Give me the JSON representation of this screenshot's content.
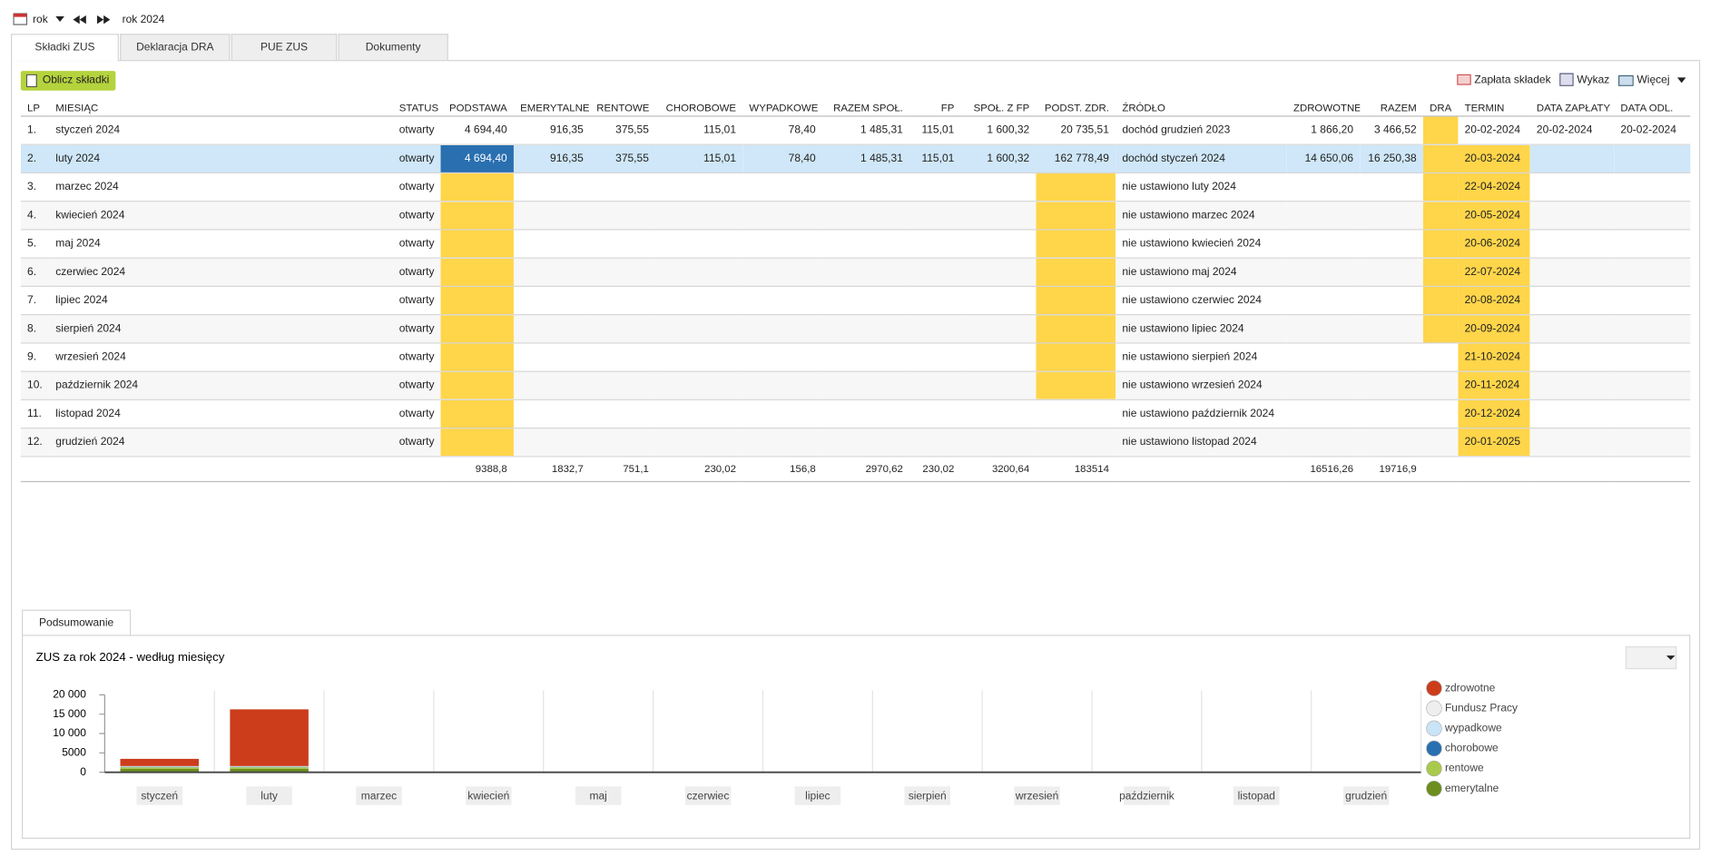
{
  "toolbar": {
    "period": "rok",
    "period_label": "rok 2024"
  },
  "tabs": [
    "Składki ZUS",
    "Deklaracja DRA",
    "PUE ZUS",
    "Dokumenty"
  ],
  "actions": {
    "calculate": "Oblicz składki",
    "payment": "Zapłata składek",
    "list": "Wykaz",
    "more": "Więcej"
  },
  "table": {
    "columns": [
      "LP",
      "MIESIĄC",
      "STATUS",
      "PODSTAWA",
      "EMERYTALNE",
      "RENTOWE",
      "CHOROBOWE",
      "WYPADKOWE",
      "RAZEM SPOŁ.",
      "FP",
      "SPOŁ. Z FP",
      "PODST. ZDR.",
      "ŹRÓDŁO",
      "ZDROWOTNE",
      "RAZEM",
      "DRA",
      "TERMIN",
      "DATA ZAPŁATY",
      "DATA ODL."
    ],
    "rows": [
      [
        "1.",
        "styczeń 2024",
        "otwarty",
        "4 694,40",
        "916,35",
        "375,55",
        "115,01",
        "78,40",
        "1 485,31",
        "115,01",
        "1 600,32",
        "20 735,51",
        "dochód grudzień 2023",
        "1 866,20",
        "3 466,52",
        null,
        "20-02-2024",
        "20-02-2024",
        "20-02-2024"
      ],
      [
        "2.",
        "luty 2024",
        "otwarty",
        "4 694,40",
        "916,35",
        "375,55",
        "115,01",
        "78,40",
        "1 485,31",
        "115,01",
        "1 600,32",
        "162 778,49",
        "dochód styczeń 2024",
        "14 650,06",
        "16 250,38",
        null,
        "20-03-2024",
        null,
        null
      ],
      [
        "3.",
        "marzec 2024",
        "otwarty",
        null,
        null,
        null,
        null,
        null,
        null,
        null,
        null,
        null,
        "nie ustawiono luty 2024",
        null,
        null,
        null,
        "22-04-2024",
        null,
        null
      ],
      [
        "4.",
        "kwiecień 2024",
        "otwarty",
        null,
        null,
        null,
        null,
        null,
        null,
        null,
        null,
        null,
        "nie ustawiono marzec 2024",
        null,
        null,
        null,
        "20-05-2024",
        null,
        null
      ],
      [
        "5.",
        "maj 2024",
        "otwarty",
        null,
        null,
        null,
        null,
        null,
        null,
        null,
        null,
        null,
        "nie ustawiono kwiecień 2024",
        null,
        null,
        null,
        "20-06-2024",
        null,
        null
      ],
      [
        "6.",
        "czerwiec 2024",
        "otwarty",
        null,
        null,
        null,
        null,
        null,
        null,
        null,
        null,
        null,
        "nie ustawiono maj 2024",
        null,
        null,
        null,
        "22-07-2024",
        null,
        null
      ],
      [
        "7.",
        "lipiec 2024",
        "otwarty",
        null,
        null,
        null,
        null,
        null,
        null,
        null,
        null,
        null,
        "nie ustawiono czerwiec 2024",
        null,
        null,
        null,
        "20-08-2024",
        null,
        null
      ],
      [
        "8.",
        "sierpień 2024",
        "otwarty",
        null,
        null,
        null,
        null,
        null,
        null,
        null,
        null,
        null,
        "nie ustawiono lipiec 2024",
        null,
        null,
        null,
        "20-09-2024",
        null,
        null
      ],
      [
        "9.",
        "wrzesień 2024",
        "otwarty",
        null,
        null,
        null,
        null,
        null,
        null,
        null,
        null,
        null,
        "nie ustawiono sierpień 2024",
        null,
        null,
        null,
        "21-10-2024",
        null,
        null
      ],
      [
        "10.",
        "październik 2024",
        "otwarty",
        null,
        null,
        null,
        null,
        null,
        null,
        null,
        null,
        null,
        "nie ustawiono wrzesień 2024",
        null,
        null,
        null,
        "20-11-2024",
        null,
        null
      ],
      [
        "11.",
        "listopad 2024",
        "otwarty",
        null,
        null,
        null,
        null,
        null,
        null,
        null,
        null,
        null,
        "nie ustawiono październik 2024",
        null,
        null,
        null,
        "20-12-2024",
        null,
        null
      ],
      [
        "12.",
        "grudzień 2024",
        "otwarty",
        null,
        null,
        null,
        null,
        null,
        null,
        null,
        null,
        null,
        "nie ustawiono listopad 2024",
        null,
        null,
        null,
        "20-01-2025",
        null,
        null
      ]
    ],
    "totals": [
      null,
      null,
      null,
      "9388,8",
      "1832,7",
      "751,1",
      "230,02",
      "156,8",
      "2970,62",
      "230,02",
      "3200,64",
      "183514",
      null,
      "16516,26",
      "19716,9",
      null,
      null,
      null,
      null
    ]
  },
  "summary_tab": "Podsumowanie",
  "chart_data": {
    "type": "stacked-bar",
    "title": "ZUS za rok 2024 - według miesięcy",
    "categories": [
      "styczeń",
      "luty",
      "marzec",
      "kwiecień",
      "maj",
      "czerwiec",
      "lipiec",
      "sierpień",
      "wrzesień",
      "październik",
      "listopad",
      "grudzień"
    ],
    "series": [
      {
        "name": "emerytalne",
        "color": "#6b8e1e",
        "values": [
          916.35,
          916.35,
          0,
          0,
          0,
          0,
          0,
          0,
          0,
          0,
          0,
          0
        ]
      },
      {
        "name": "rentowe",
        "color": "#a9c94a",
        "values": [
          375.55,
          375.55,
          0,
          0,
          0,
          0,
          0,
          0,
          0,
          0,
          0,
          0
        ]
      },
      {
        "name": "chorobowe",
        "color": "#2a6fb0",
        "values": [
          115.01,
          115.01,
          0,
          0,
          0,
          0,
          0,
          0,
          0,
          0,
          0,
          0
        ]
      },
      {
        "name": "wypadkowe",
        "color": "#c9e3f7",
        "values": [
          78.4,
          78.4,
          0,
          0,
          0,
          0,
          0,
          0,
          0,
          0,
          0,
          0
        ]
      },
      {
        "name": "Fundusz Pracy",
        "color": "#eeeeee",
        "values": [
          115.01,
          115.01,
          0,
          0,
          0,
          0,
          0,
          0,
          0,
          0,
          0,
          0
        ]
      },
      {
        "name": "zdrowotne",
        "color": "#cc3d1c",
        "values": [
          1866.2,
          14650.06,
          0,
          0,
          0,
          0,
          0,
          0,
          0,
          0,
          0,
          0
        ]
      }
    ],
    "ylim": [
      0,
      20000
    ],
    "yticks": [
      0,
      5000,
      {
        "value": 10000,
        "label": "10 000"
      },
      {
        "value": 15000,
        "label": "15 000"
      },
      {
        "value": 20000,
        "label": "20 000"
      }
    ]
  }
}
